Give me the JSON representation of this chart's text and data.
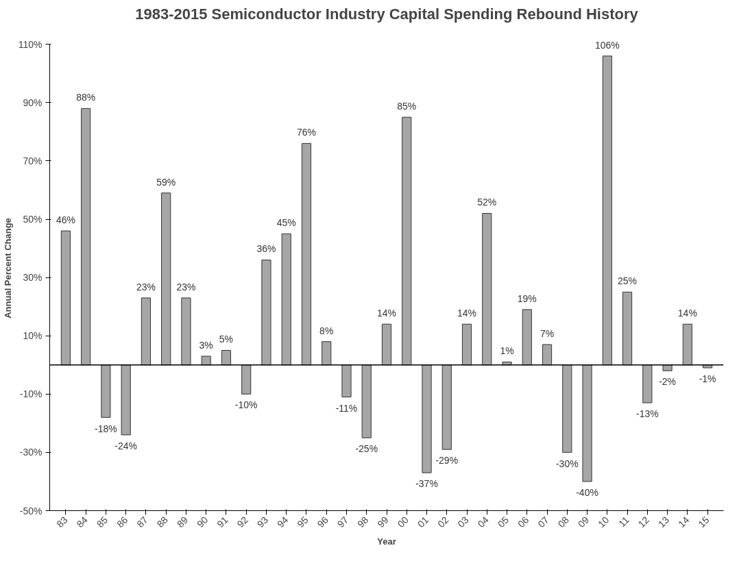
{
  "chart_data": {
    "type": "bar",
    "title": "1983-2015 Semiconductor Industry Capital Spending Rebound History",
    "xlabel": "Year",
    "ylabel": "Annual Percent Change",
    "categories": [
      "83",
      "84",
      "85",
      "86",
      "87",
      "88",
      "89",
      "90",
      "91",
      "92",
      "93",
      "94",
      "95",
      "96",
      "97",
      "98",
      "99",
      "00",
      "01",
      "02",
      "03",
      "04",
      "05",
      "06",
      "07",
      "08",
      "09",
      "10",
      "11",
      "12",
      "13",
      "14",
      "15"
    ],
    "values": [
      46,
      88,
      -18,
      -24,
      23,
      59,
      23,
      3,
      5,
      -10,
      36,
      45,
      76,
      8,
      -11,
      -25,
      14,
      85,
      -37,
      -29,
      14,
      52,
      1,
      19,
      7,
      -30,
      -40,
      106,
      25,
      -13,
      -2,
      14,
      -1
    ],
    "value_labels": [
      "46%",
      "88%",
      "-18%",
      "-24%",
      "23%",
      "59%",
      "23%",
      "3%",
      "5%",
      "-10%",
      "36%",
      "45%",
      "76%",
      "8%",
      "-11%",
      "-25%",
      "14%",
      "85%",
      "-37%",
      "-29%",
      "14%",
      "52%",
      "1%",
      "19%",
      "7%",
      "-30%",
      "-40%",
      "106%",
      "25%",
      "-13%",
      "-2%",
      "14%",
      "-1%"
    ],
    "color": "#a6a6a6",
    "ylim": [
      -50,
      110
    ],
    "yticks": [
      {
        "value": -50,
        "label": "-50%"
      },
      {
        "value": -30,
        "label": "-30%"
      },
      {
        "value": -10,
        "label": "-10%"
      },
      {
        "value": 10,
        "label": "10%"
      },
      {
        "value": 30,
        "label": "30%"
      },
      {
        "value": 50,
        "label": "50%"
      },
      {
        "value": 70,
        "label": "70%"
      },
      {
        "value": 90,
        "label": "90%"
      },
      {
        "value": 110,
        "label": "110%"
      }
    ],
    "grid": false
  }
}
